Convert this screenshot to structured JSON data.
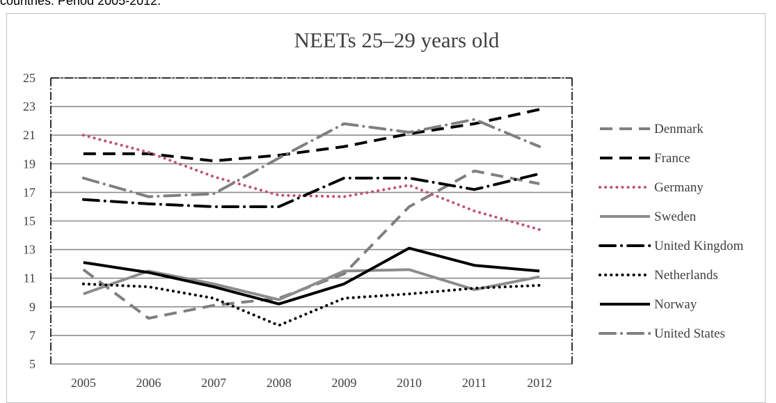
{
  "caption": "countries. Period 2005-2012.",
  "chart_data": {
    "type": "line",
    "title": "NEETs 25–29 years old",
    "xlabel": "",
    "ylabel": "",
    "categories": [
      "2005",
      "2006",
      "2007",
      "2008",
      "2009",
      "2010",
      "2011",
      "2012"
    ],
    "ylim": [
      5,
      25
    ],
    "yticks": [
      5,
      7,
      9,
      11,
      13,
      15,
      17,
      19,
      21,
      23,
      25
    ],
    "grid": true,
    "legend_position": "right",
    "series": [
      {
        "name": "Denmark",
        "values": [
          11.6,
          8.2,
          9.1,
          9.6,
          11.3,
          16.0,
          18.5,
          17.6
        ],
        "color": "#7f7f7f",
        "style": "dash"
      },
      {
        "name": "France",
        "values": [
          19.7,
          19.7,
          19.2,
          19.6,
          20.2,
          21.1,
          21.8,
          22.8
        ],
        "color": "#000000",
        "style": "dash"
      },
      {
        "name": "Germany",
        "values": [
          21.0,
          19.8,
          18.1,
          16.8,
          16.7,
          17.5,
          15.7,
          14.4
        ],
        "color": "#c0507a",
        "style": "dot"
      },
      {
        "name": "Sweden",
        "values": [
          9.9,
          11.5,
          10.6,
          9.5,
          11.5,
          11.6,
          10.2,
          11.1
        ],
        "color": "#8c8c8c",
        "style": "solid"
      },
      {
        "name": "United Kingdom",
        "values": [
          16.5,
          16.2,
          16.0,
          16.0,
          18.0,
          18.0,
          17.2,
          18.3
        ],
        "color": "#000000",
        "style": "dash-dot"
      },
      {
        "name": "Netherlands",
        "values": [
          10.6,
          10.4,
          9.6,
          7.7,
          9.6,
          9.9,
          10.3,
          10.5
        ],
        "color": "#000000",
        "style": "dot"
      },
      {
        "name": "Norway",
        "values": [
          12.1,
          11.4,
          10.4,
          9.2,
          10.6,
          13.1,
          11.9,
          11.5
        ],
        "color": "#000000",
        "style": "solid"
      },
      {
        "name": "United States",
        "values": [
          18.0,
          16.7,
          16.9,
          19.4,
          21.8,
          21.2,
          22.1,
          20.2
        ],
        "color": "#7f7f7f",
        "style": "dash-dot"
      }
    ]
  }
}
